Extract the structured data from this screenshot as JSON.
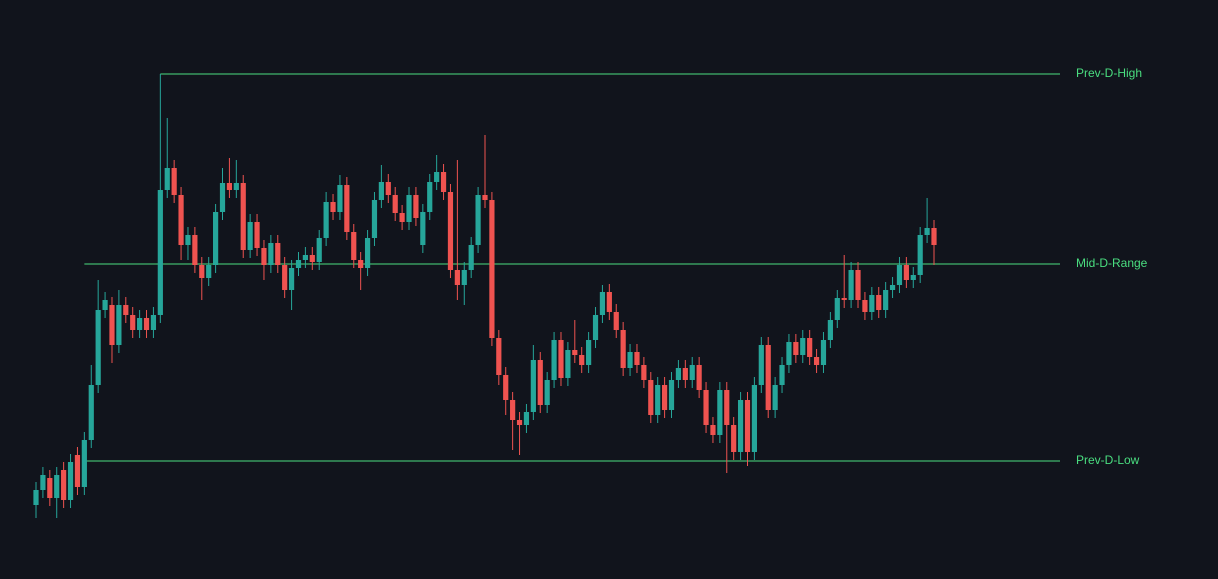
{
  "chart_data": {
    "type": "candlestick",
    "up_color": "#26a69a",
    "down_color": "#ef5350",
    "level_color": "#4ade80",
    "ylim": [
      21,
      600
    ],
    "open": [
      95,
      110,
      122,
      102,
      130,
      100,
      145,
      113,
      160,
      215,
      290,
      295,
      255,
      295,
      285,
      270,
      282,
      270,
      285,
      410,
      432,
      405,
      355,
      365,
      335,
      322,
      335,
      388,
      417,
      410,
      417,
      350,
      378,
      352,
      335,
      357,
      335,
      310,
      332,
      340,
      345,
      338,
      362,
      398,
      388,
      415,
      368,
      340,
      332,
      362,
      400,
      418,
      405,
      387,
      378,
      405,
      355,
      388,
      418,
      428,
      408,
      330,
      315,
      330,
      355,
      405,
      400,
      262,
      225,
      200,
      180,
      175,
      188,
      240,
      195,
      220,
      260,
      222,
      250,
      245,
      235,
      260,
      285,
      308,
      288,
      270,
      232,
      248,
      235,
      220,
      185,
      215,
      190,
      220,
      232,
      220,
      235,
      210,
      175,
      165,
      210,
      175,
      148,
      200,
      148,
      215,
      255,
      190,
      215,
      235,
      258,
      245,
      262,
      243,
      235,
      260,
      280,
      302,
      300,
      330,
      300,
      288,
      305,
      290,
      310,
      315,
      335,
      320,
      325,
      365,
      372
    ],
    "high": [
      118,
      133,
      130,
      133,
      138,
      146,
      153,
      168,
      235,
      320,
      308,
      303,
      310,
      303,
      293,
      290,
      290,
      293,
      526,
      482,
      440,
      413,
      373,
      373,
      343,
      343,
      396,
      432,
      442,
      440,
      425,
      386,
      386,
      360,
      365,
      365,
      343,
      340,
      348,
      353,
      353,
      370,
      408,
      406,
      425,
      423,
      376,
      348,
      370,
      408,
      435,
      426,
      413,
      395,
      413,
      413,
      396,
      426,
      445,
      436,
      416,
      440,
      338,
      363,
      413,
      465,
      408,
      270,
      233,
      208,
      188,
      196,
      255,
      248,
      228,
      268,
      268,
      258,
      280,
      253,
      268,
      293,
      315,
      316,
      296,
      278,
      256,
      256,
      243,
      228,
      223,
      223,
      228,
      240,
      240,
      243,
      243,
      218,
      183,
      218,
      218,
      183,
      208,
      208,
      223,
      263,
      263,
      223,
      243,
      266,
      266,
      270,
      270,
      251,
      268,
      288,
      310,
      345,
      338,
      338,
      308,
      313,
      313,
      318,
      323,
      343,
      343,
      333,
      373,
      402,
      380
    ],
    "low": [
      82,
      102,
      94,
      82,
      92,
      92,
      105,
      105,
      152,
      207,
      282,
      237,
      247,
      277,
      262,
      262,
      262,
      262,
      277,
      402,
      397,
      340,
      340,
      327,
      300,
      314,
      327,
      380,
      402,
      402,
      342,
      342,
      344,
      320,
      327,
      327,
      302,
      290,
      324,
      332,
      330,
      330,
      354,
      380,
      380,
      360,
      332,
      310,
      324,
      354,
      392,
      397,
      379,
      370,
      370,
      374,
      347,
      380,
      410,
      400,
      322,
      300,
      295,
      322,
      347,
      392,
      254,
      215,
      185,
      150,
      145,
      167,
      180,
      187,
      187,
      212,
      214,
      214,
      237,
      227,
      227,
      252,
      277,
      280,
      262,
      224,
      224,
      227,
      212,
      177,
      177,
      182,
      182,
      212,
      212,
      212,
      202,
      167,
      157,
      157,
      127,
      140,
      140,
      134,
      140,
      207,
      182,
      182,
      207,
      227,
      237,
      237,
      235,
      227,
      227,
      252,
      272,
      292,
      292,
      292,
      280,
      280,
      282,
      282,
      302,
      307,
      312,
      312,
      317,
      357,
      335
    ],
    "close": [
      110,
      125,
      102,
      125,
      100,
      138,
      113,
      160,
      215,
      290,
      300,
      255,
      295,
      285,
      270,
      282,
      270,
      285,
      410,
      432,
      405,
      355,
      365,
      335,
      322,
      335,
      388,
      417,
      410,
      417,
      350,
      378,
      352,
      335,
      357,
      335,
      310,
      332,
      340,
      345,
      338,
      362,
      398,
      388,
      415,
      368,
      340,
      332,
      362,
      400,
      418,
      405,
      387,
      378,
      405,
      382,
      388,
      418,
      428,
      408,
      330,
      315,
      330,
      355,
      405,
      400,
      262,
      225,
      200,
      180,
      175,
      188,
      240,
      195,
      220,
      260,
      222,
      250,
      245,
      235,
      260,
      285,
      308,
      288,
      270,
      232,
      248,
      235,
      220,
      185,
      215,
      190,
      220,
      232,
      220,
      235,
      210,
      175,
      165,
      210,
      175,
      148,
      200,
      148,
      215,
      255,
      190,
      215,
      235,
      258,
      245,
      262,
      243,
      235,
      260,
      280,
      302,
      300,
      330,
      300,
      288,
      305,
      290,
      310,
      315,
      335,
      320,
      325,
      365,
      372,
      355
    ],
    "levels": [
      {
        "name": "Prev-D-High",
        "value": 526
      },
      {
        "name": "Mid-D-Range",
        "value": 336
      },
      {
        "name": "Prev-D-Low",
        "value": 139
      }
    ]
  }
}
